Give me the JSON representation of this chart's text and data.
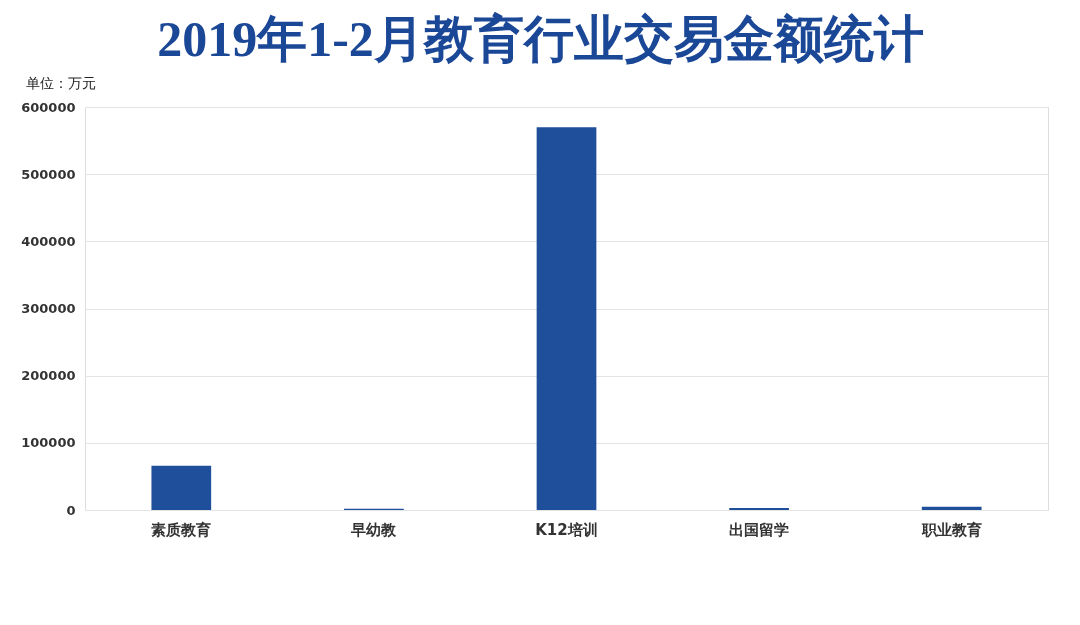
{
  "chart_data": {
    "type": "bar",
    "title": "2019年1-2月教育行业交易金额统计",
    "ylabel": "单位：万元",
    "categories": [
      "素质教育",
      "早幼教",
      "K12培训",
      "出国留学",
      "职业教育"
    ],
    "values": [
      66000,
      2000,
      570000,
      3000,
      5000
    ],
    "color": "#1f4e9b",
    "ylim": [
      0,
      600000
    ],
    "yticks": [
      0,
      100000,
      200000,
      300000,
      400000,
      500000,
      600000
    ],
    "grid": "y"
  }
}
